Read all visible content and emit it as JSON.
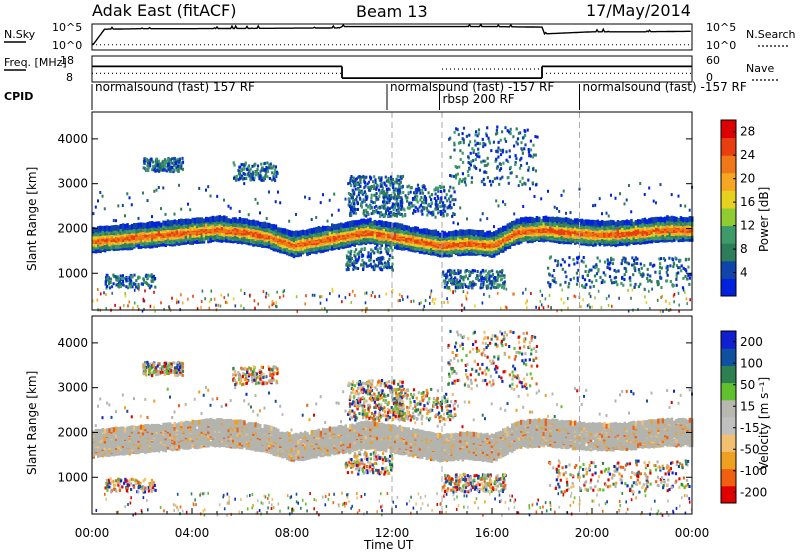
{
  "header": {
    "title": "Adak East (fitACF)",
    "beam": "Beam 13",
    "date": "17/May/2014"
  },
  "colors": {
    "power_scale": [
      "#0022dd",
      "#1144aa",
      "#2e7d5a",
      "#3f9a6a",
      "#8fcc33",
      "#e6d21e",
      "#f5a623",
      "#f07818",
      "#e83e10",
      "#dd0000"
    ],
    "velocity_scale": [
      "#e00000",
      "#f06010",
      "#f0a020",
      "#f2c070",
      "#c0c0c0",
      "#b8b8b0",
      "#60c030",
      "#2e8050",
      "#1050a0",
      "#1020d0"
    ],
    "ground_scatter": "#b4b4ae"
  },
  "chart_data": [
    {
      "type": "line",
      "title": "",
      "left_label": "N.Sky",
      "right_label": "N.Search",
      "left_ticks": [
        "10^5",
        "10^0"
      ],
      "right_ticks": [
        "10^5",
        "10^0"
      ],
      "x_hours": [
        0,
        0.5,
        2,
        4,
        6,
        8,
        9.9,
        10,
        12,
        14,
        16,
        18,
        18.1,
        20,
        22,
        24
      ],
      "n_sky_level": [
        0.15,
        0.8,
        0.82,
        0.82,
        0.83,
        0.84,
        0.85,
        0.9,
        0.9,
        0.9,
        0.9,
        0.88,
        0.62,
        0.7,
        0.7,
        0.72
      ],
      "n_search_level": [
        0.2,
        0.2,
        0.2,
        0.2,
        0.2,
        0.2,
        0.2,
        0.2,
        0.2,
        0.2,
        0.2,
        0.2,
        0.2,
        0.2,
        0.2,
        0.2
      ]
    },
    {
      "type": "line",
      "title": "",
      "left_label": "Freq. [MHz]",
      "right_label": "Nave",
      "left_ticks": [
        "18",
        "8"
      ],
      "right_ticks": [
        "60",
        "0"
      ],
      "freq_segments": [
        {
          "x0": 0,
          "x1": 10,
          "value": 14
        },
        {
          "x0": 10,
          "x1": 18,
          "value": 9.5
        },
        {
          "x0": 18,
          "x1": 24,
          "value": 14
        }
      ],
      "nave_segments": [
        {
          "x0": 0,
          "x1": 10,
          "value": 20
        },
        {
          "x0": 14,
          "x1": 18,
          "value": 30
        },
        {
          "x0": 18,
          "x1": 24,
          "value": 20
        }
      ]
    },
    {
      "type": "table",
      "title": "CPID",
      "segments": [
        {
          "x0": 0,
          "x1": 11.8,
          "label": "normalsound (fast) 157 RF"
        },
        {
          "x0": 11.8,
          "x1": 19.5,
          "label": "normalsound (fast) -157 RF"
        },
        {
          "x0": 13.9,
          "x1": 16.0,
          "label": "rbsp 200 RF"
        },
        {
          "x0": 19.5,
          "x1": 24,
          "label": "normalsound (fast) -157 RF"
        }
      ]
    },
    {
      "type": "heatmap",
      "title": "",
      "ylabel": "Slant Range [km]",
      "yticks": [
        1000,
        2000,
        3000,
        4000
      ],
      "ylim": [
        180,
        4600
      ],
      "colorbar_label": "Power [dB]",
      "colorbar_ticks": [
        "4",
        "8",
        "12",
        "16",
        "20",
        "24",
        "28"
      ],
      "colorbar_range": [
        0,
        30
      ],
      "band_center_km": [
        1800,
        1850,
        1900,
        1950,
        2000,
        2050,
        2000,
        1900,
        1700,
        1800,
        1900,
        2000,
        1900,
        1800,
        1700,
        1750,
        1700,
        2000,
        2050,
        2000,
        1950,
        1950,
        2000,
        2050,
        2050
      ],
      "band_hours": [
        0,
        1,
        2,
        3,
        4,
        5,
        6,
        7,
        8,
        9,
        10,
        11,
        12,
        13,
        14,
        15,
        16,
        17,
        18,
        19,
        20,
        21,
        22,
        23,
        24
      ]
    },
    {
      "type": "heatmap",
      "title": "",
      "ylabel": "Slant Range [km]",
      "yticks": [
        1000,
        2000,
        3000,
        4000
      ],
      "ylim": [
        180,
        4600
      ],
      "xlabel": "Time UT",
      "xticks": [
        "00:00",
        "04:00",
        "08:00",
        "12:00",
        "16:00",
        "20:00",
        "00:00"
      ],
      "xlim": [
        0,
        24
      ],
      "colorbar_label": "Velocity [m s⁻¹]",
      "colorbar_ticks": [
        "200",
        "100",
        "50",
        "15",
        "-15",
        "-50",
        "-100",
        "-200"
      ]
    }
  ]
}
